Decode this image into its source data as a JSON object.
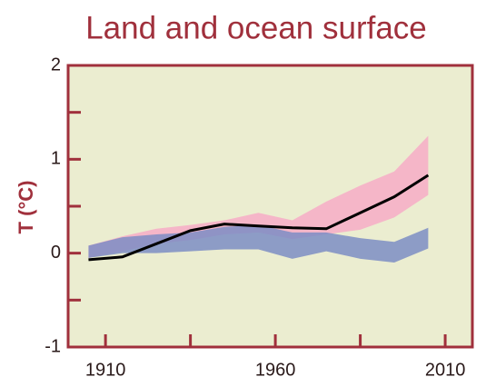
{
  "chart_data": {
    "type": "line",
    "title": "Land and ocean surface",
    "ylabel": "T (°C)",
    "x": [
      1905,
      1915,
      1925,
      1935,
      1945,
      1955,
      1965,
      1975,
      1985,
      1995,
      2005
    ],
    "bands": [
      {
        "color": "#f5b6c8",
        "lower": [
          -0.05,
          0.02,
          0.1,
          0.14,
          0.2,
          0.22,
          0.15,
          0.2,
          0.25,
          0.38,
          0.62
        ],
        "upper": [
          0.08,
          0.18,
          0.26,
          0.3,
          0.35,
          0.43,
          0.35,
          0.55,
          0.72,
          0.87,
          1.25
        ]
      },
      {
        "color": "#7d8dc4",
        "lower": [
          -0.05,
          0.0,
          0.0,
          0.02,
          0.04,
          0.04,
          -0.06,
          0.02,
          -0.06,
          -0.1,
          0.05
        ],
        "upper": [
          0.08,
          0.17,
          0.2,
          0.22,
          0.28,
          0.3,
          0.22,
          0.22,
          0.16,
          0.12,
          0.27
        ]
      }
    ],
    "series": [
      {
        "color": "#000000",
        "values": [
          -0.07,
          -0.04,
          0.1,
          0.24,
          0.31,
          0.29,
          0.27,
          0.26,
          0.43,
          0.6,
          0.83
        ]
      }
    ],
    "xlim": [
      1899,
      2018
    ],
    "xticks": [
      1910,
      1960,
      2010
    ],
    "xminor": [
      1935,
      1985
    ],
    "ylim": [
      -1,
      2
    ],
    "yticks": [
      -1,
      0,
      1,
      2
    ],
    "yminor": [
      -0.5,
      0.5,
      1.5
    ],
    "axis_color": "#a0303c",
    "background": "#ebedd0"
  }
}
